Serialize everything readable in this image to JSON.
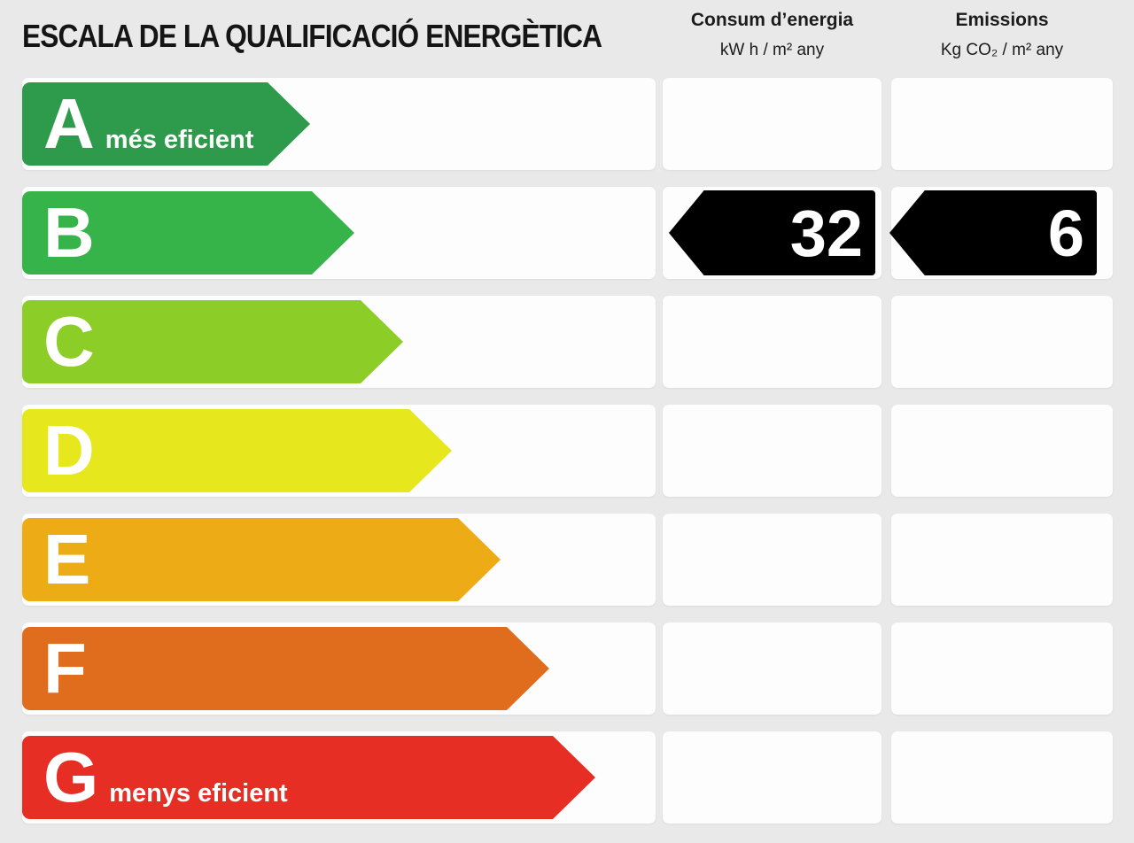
{
  "title": "ESCALA DE LA QUALIFICACIÓ ENERGÈTICA",
  "columns": {
    "consumption": {
      "title": "Consum d’energia",
      "unit": "kW h / m² any"
    },
    "emissions": {
      "title": "Emissions",
      "unit": "Kg CO₂ / m² any"
    }
  },
  "scale": {
    "ratings": [
      {
        "letter": "A",
        "annotation": "més eficient",
        "color": "#2e9a4b",
        "bar_body_width": 277
      },
      {
        "letter": "B",
        "annotation": "",
        "color": "#36b44a",
        "bar_body_width": 327
      },
      {
        "letter": "C",
        "annotation": "",
        "color": "#8ccd28",
        "bar_body_width": 382
      },
      {
        "letter": "D",
        "annotation": "",
        "color": "#e6e71c",
        "bar_body_width": 437
      },
      {
        "letter": "E",
        "annotation": "",
        "color": "#edac15",
        "bar_body_width": 492
      },
      {
        "letter": "F",
        "annotation": "",
        "color": "#e06d1e",
        "bar_body_width": 547
      },
      {
        "letter": "G",
        "annotation": "menys eficient",
        "color": "#e62e24",
        "bar_body_width": 599
      }
    ]
  },
  "result": {
    "rating": "B",
    "consumption_value": "32",
    "emissions_value": "6",
    "arrow_color": "#000000"
  },
  "chart_data": {
    "type": "bar",
    "title": "ESCALA DE LA QUALIFICACIÓ ENERGÈTICA",
    "categories": [
      "A",
      "B",
      "C",
      "D",
      "E",
      "F",
      "G"
    ],
    "series": [
      {
        "name": "scale-bar-relative-length",
        "values": [
          1,
          2,
          3,
          4,
          5,
          6,
          7
        ]
      }
    ],
    "bar_colors": [
      "#2e9a4b",
      "#36b44a",
      "#8ccd28",
      "#e6e71c",
      "#edac15",
      "#e06d1e",
      "#e62e24"
    ],
    "annotations": [
      "A = més eficient",
      "G = menys eficient"
    ],
    "highlighted_category": "B",
    "values": {
      "consum_energia_kwh_m2_any": 32,
      "emissions_kg_co2_m2_any": 6
    },
    "column_headers": [
      "Consum d’energia (kW h / m² any)",
      "Emissions (Kg CO₂ / m² any)"
    ],
    "legend": "none",
    "grid": false
  }
}
